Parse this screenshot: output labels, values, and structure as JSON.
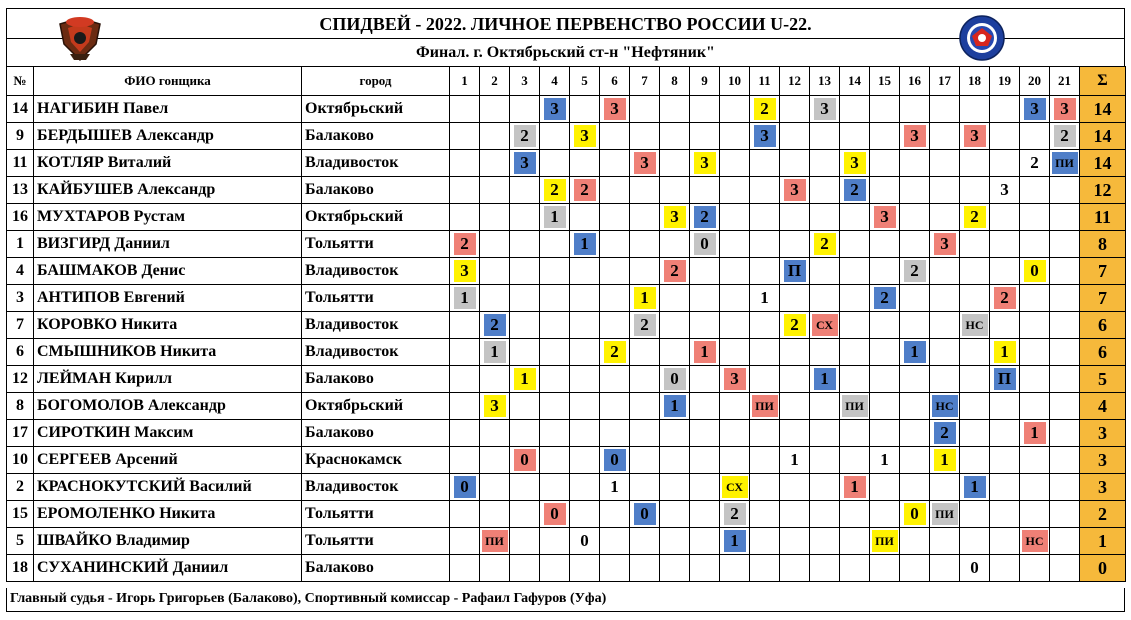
{
  "title": "СПИДВЕЙ - 2022.   ЛИЧНОЕ ПЕРВЕНСТВО РОССИИ U-22.",
  "subtitle": "Финал.  г. Октябрьский ст-н \"Нефтяник\"",
  "columns": {
    "num": "№",
    "name": "ФИО гонщика",
    "city": "город",
    "heats": [
      "1",
      "2",
      "3",
      "4",
      "5",
      "6",
      "7",
      "8",
      "9",
      "10",
      "11",
      "12",
      "13",
      "14",
      "15",
      "16",
      "17",
      "18",
      "19",
      "20",
      "21"
    ],
    "total": "Σ"
  },
  "colors": {
    "blue": "#4f7ec8",
    "red": "#ef8076",
    "yellow": "#fff200",
    "gray": "#c4c4c4",
    "total": "#f6b93b"
  },
  "riders": [
    {
      "num": "14",
      "name": "НАГИБИН Павел",
      "city": "Октябрьский",
      "total": "14",
      "cells": [
        {
          "h": 4,
          "v": "3",
          "c": "blue"
        },
        {
          "h": 6,
          "v": "3",
          "c": "red"
        },
        {
          "h": 11,
          "v": "2",
          "c": "yellow"
        },
        {
          "h": 13,
          "v": "3",
          "c": "gray"
        },
        {
          "h": 20,
          "v": "3",
          "c": "blue"
        },
        {
          "h": 21,
          "v": "3",
          "c": "red"
        }
      ]
    },
    {
      "num": "9",
      "name": "БЕРДЫШЕВ Александр",
      "city": "Балаково",
      "total": "14",
      "cells": [
        {
          "h": 3,
          "v": "2",
          "c": "gray"
        },
        {
          "h": 5,
          "v": "3",
          "c": "yellow"
        },
        {
          "h": 11,
          "v": "3",
          "c": "blue"
        },
        {
          "h": 16,
          "v": "3",
          "c": "red"
        },
        {
          "h": 18,
          "v": "3",
          "c": "red"
        },
        {
          "h": 21,
          "v": "2",
          "c": "gray"
        }
      ]
    },
    {
      "num": "11",
      "name": "КОТЛЯР Виталий",
      "city": "Владивосток",
      "total": "14",
      "cells": [
        {
          "h": 3,
          "v": "3",
          "c": "blue"
        },
        {
          "h": 7,
          "v": "3",
          "c": "red"
        },
        {
          "h": 9,
          "v": "3",
          "c": "yellow"
        },
        {
          "h": 14,
          "v": "3",
          "c": "yellow"
        },
        {
          "h": 20,
          "v": "2",
          "c": "none"
        },
        {
          "h": 21,
          "v": "ПИ",
          "c": "blue"
        }
      ]
    },
    {
      "num": "13",
      "name": "КАЙБУШЕВ Александр",
      "city": "Балаково",
      "total": "12",
      "cells": [
        {
          "h": 4,
          "v": "2",
          "c": "yellow"
        },
        {
          "h": 5,
          "v": "2",
          "c": "red"
        },
        {
          "h": 12,
          "v": "3",
          "c": "red"
        },
        {
          "h": 14,
          "v": "2",
          "c": "blue"
        },
        {
          "h": 19,
          "v": "3",
          "c": "none"
        }
      ]
    },
    {
      "num": "16",
      "name": "МУХТАРОВ Рустам",
      "city": "Октябрьский",
      "total": "11",
      "cells": [
        {
          "h": 4,
          "v": "1",
          "c": "gray"
        },
        {
          "h": 8,
          "v": "3",
          "c": "yellow"
        },
        {
          "h": 9,
          "v": "2",
          "c": "blue"
        },
        {
          "h": 15,
          "v": "3",
          "c": "red"
        },
        {
          "h": 18,
          "v": "2",
          "c": "yellow"
        }
      ]
    },
    {
      "num": "1",
      "name": "ВИЗГИРД Даниил",
      "city": "Тольятти",
      "total": "8",
      "cells": [
        {
          "h": 1,
          "v": "2",
          "c": "red"
        },
        {
          "h": 5,
          "v": "1",
          "c": "blue"
        },
        {
          "h": 9,
          "v": "0",
          "c": "gray"
        },
        {
          "h": 13,
          "v": "2",
          "c": "yellow"
        },
        {
          "h": 17,
          "v": "3",
          "c": "red"
        }
      ]
    },
    {
      "num": "4",
      "name": "БАШМАКОВ Денис",
      "city": "Владивосток",
      "total": "7",
      "cells": [
        {
          "h": 1,
          "v": "3",
          "c": "yellow"
        },
        {
          "h": 8,
          "v": "2",
          "c": "red"
        },
        {
          "h": 12,
          "v": "П",
          "c": "blue"
        },
        {
          "h": 16,
          "v": "2",
          "c": "gray"
        },
        {
          "h": 20,
          "v": "0",
          "c": "yellow"
        }
      ]
    },
    {
      "num": "3",
      "name": "АНТИПОВ Евгений",
      "city": "Тольятти",
      "total": "7",
      "cells": [
        {
          "h": 1,
          "v": "1",
          "c": "gray"
        },
        {
          "h": 7,
          "v": "1",
          "c": "yellow"
        },
        {
          "h": 11,
          "v": "1",
          "c": "none"
        },
        {
          "h": 15,
          "v": "2",
          "c": "blue"
        },
        {
          "h": 19,
          "v": "2",
          "c": "red"
        }
      ]
    },
    {
      "num": "7",
      "name": "КОРОВКО Никита",
      "city": "Владивосток",
      "total": "6",
      "cells": [
        {
          "h": 2,
          "v": "2",
          "c": "blue"
        },
        {
          "h": 7,
          "v": "2",
          "c": "gray"
        },
        {
          "h": 12,
          "v": "2",
          "c": "yellow"
        },
        {
          "h": 13,
          "v": "СХ",
          "c": "red"
        },
        {
          "h": 18,
          "v": "НС",
          "c": "gray"
        }
      ]
    },
    {
      "num": "6",
      "name": "СМЫШНИКОВ Никита",
      "city": "Владивосток",
      "total": "6",
      "cells": [
        {
          "h": 2,
          "v": "1",
          "c": "gray"
        },
        {
          "h": 6,
          "v": "2",
          "c": "yellow"
        },
        {
          "h": 9,
          "v": "1",
          "c": "red"
        },
        {
          "h": 16,
          "v": "1",
          "c": "blue"
        },
        {
          "h": 19,
          "v": "1",
          "c": "yellow"
        }
      ]
    },
    {
      "num": "12",
      "name": "ЛЕЙМАН Кирилл",
      "city": "Балаково",
      "total": "5",
      "cells": [
        {
          "h": 3,
          "v": "1",
          "c": "yellow"
        },
        {
          "h": 8,
          "v": "0",
          "c": "gray"
        },
        {
          "h": 10,
          "v": "3",
          "c": "red"
        },
        {
          "h": 13,
          "v": "1",
          "c": "blue"
        },
        {
          "h": 19,
          "v": "П",
          "c": "blue"
        }
      ]
    },
    {
      "num": "8",
      "name": "БОГОМОЛОВ Александр",
      "city": "Октябрьский",
      "total": "4",
      "cells": [
        {
          "h": 2,
          "v": "3",
          "c": "yellow"
        },
        {
          "h": 8,
          "v": "1",
          "c": "blue"
        },
        {
          "h": 11,
          "v": "ПИ",
          "c": "red"
        },
        {
          "h": 14,
          "v": "ПИ",
          "c": "gray"
        },
        {
          "h": 17,
          "v": "НС",
          "c": "blue"
        }
      ]
    },
    {
      "num": "17",
      "name": "СИРОТКИН Максим",
      "city": "Балаково",
      "total": "3",
      "cells": [
        {
          "h": 17,
          "v": "2",
          "c": "blue"
        },
        {
          "h": 20,
          "v": "1",
          "c": "red"
        }
      ]
    },
    {
      "num": "10",
      "name": "СЕРГЕЕВ Арсений",
      "city": "Краснокамск",
      "total": "3",
      "cells": [
        {
          "h": 3,
          "v": "0",
          "c": "red"
        },
        {
          "h": 6,
          "v": "0",
          "c": "blue"
        },
        {
          "h": 12,
          "v": "1",
          "c": "none"
        },
        {
          "h": 15,
          "v": "1",
          "c": "none"
        },
        {
          "h": 17,
          "v": "1",
          "c": "yellow"
        }
      ]
    },
    {
      "num": "2",
      "name": "КРАСНОКУТСКИЙ Василий",
      "city": "Владивосток",
      "total": "3",
      "cells": [
        {
          "h": 1,
          "v": "0",
          "c": "blue"
        },
        {
          "h": 6,
          "v": "1",
          "c": "none"
        },
        {
          "h": 10,
          "v": "СХ",
          "c": "yellow"
        },
        {
          "h": 14,
          "v": "1",
          "c": "red"
        },
        {
          "h": 18,
          "v": "1",
          "c": "blue"
        }
      ]
    },
    {
      "num": "15",
      "name": "ЕРОМОЛЕНКО Никита",
      "city": "Тольятти",
      "total": "2",
      "cells": [
        {
          "h": 4,
          "v": "0",
          "c": "red"
        },
        {
          "h": 7,
          "v": "0",
          "c": "blue"
        },
        {
          "h": 10,
          "v": "2",
          "c": "gray"
        },
        {
          "h": 16,
          "v": "0",
          "c": "yellow"
        },
        {
          "h": 17,
          "v": "ПИ",
          "c": "gray"
        }
      ]
    },
    {
      "num": "5",
      "name": "ШВАЙКО Владимир",
      "city": "Тольятти",
      "total": "1",
      "cells": [
        {
          "h": 2,
          "v": "ПИ",
          "c": "red"
        },
        {
          "h": 5,
          "v": "0",
          "c": "none"
        },
        {
          "h": 10,
          "v": "1",
          "c": "blue"
        },
        {
          "h": 15,
          "v": "ПИ",
          "c": "yellow"
        },
        {
          "h": 20,
          "v": "НС",
          "c": "red"
        }
      ]
    },
    {
      "num": "18",
      "name": "СУХАНИНСКИЙ Даниил",
      "city": "Балаково",
      "total": "0",
      "cells": [
        {
          "h": 18,
          "v": "0",
          "c": "none"
        }
      ]
    }
  ],
  "footer": "Главный судья - Игорь Григорьев (Балаково), Спортивный комиссар - Рафаил Гафуров (Уфа)"
}
